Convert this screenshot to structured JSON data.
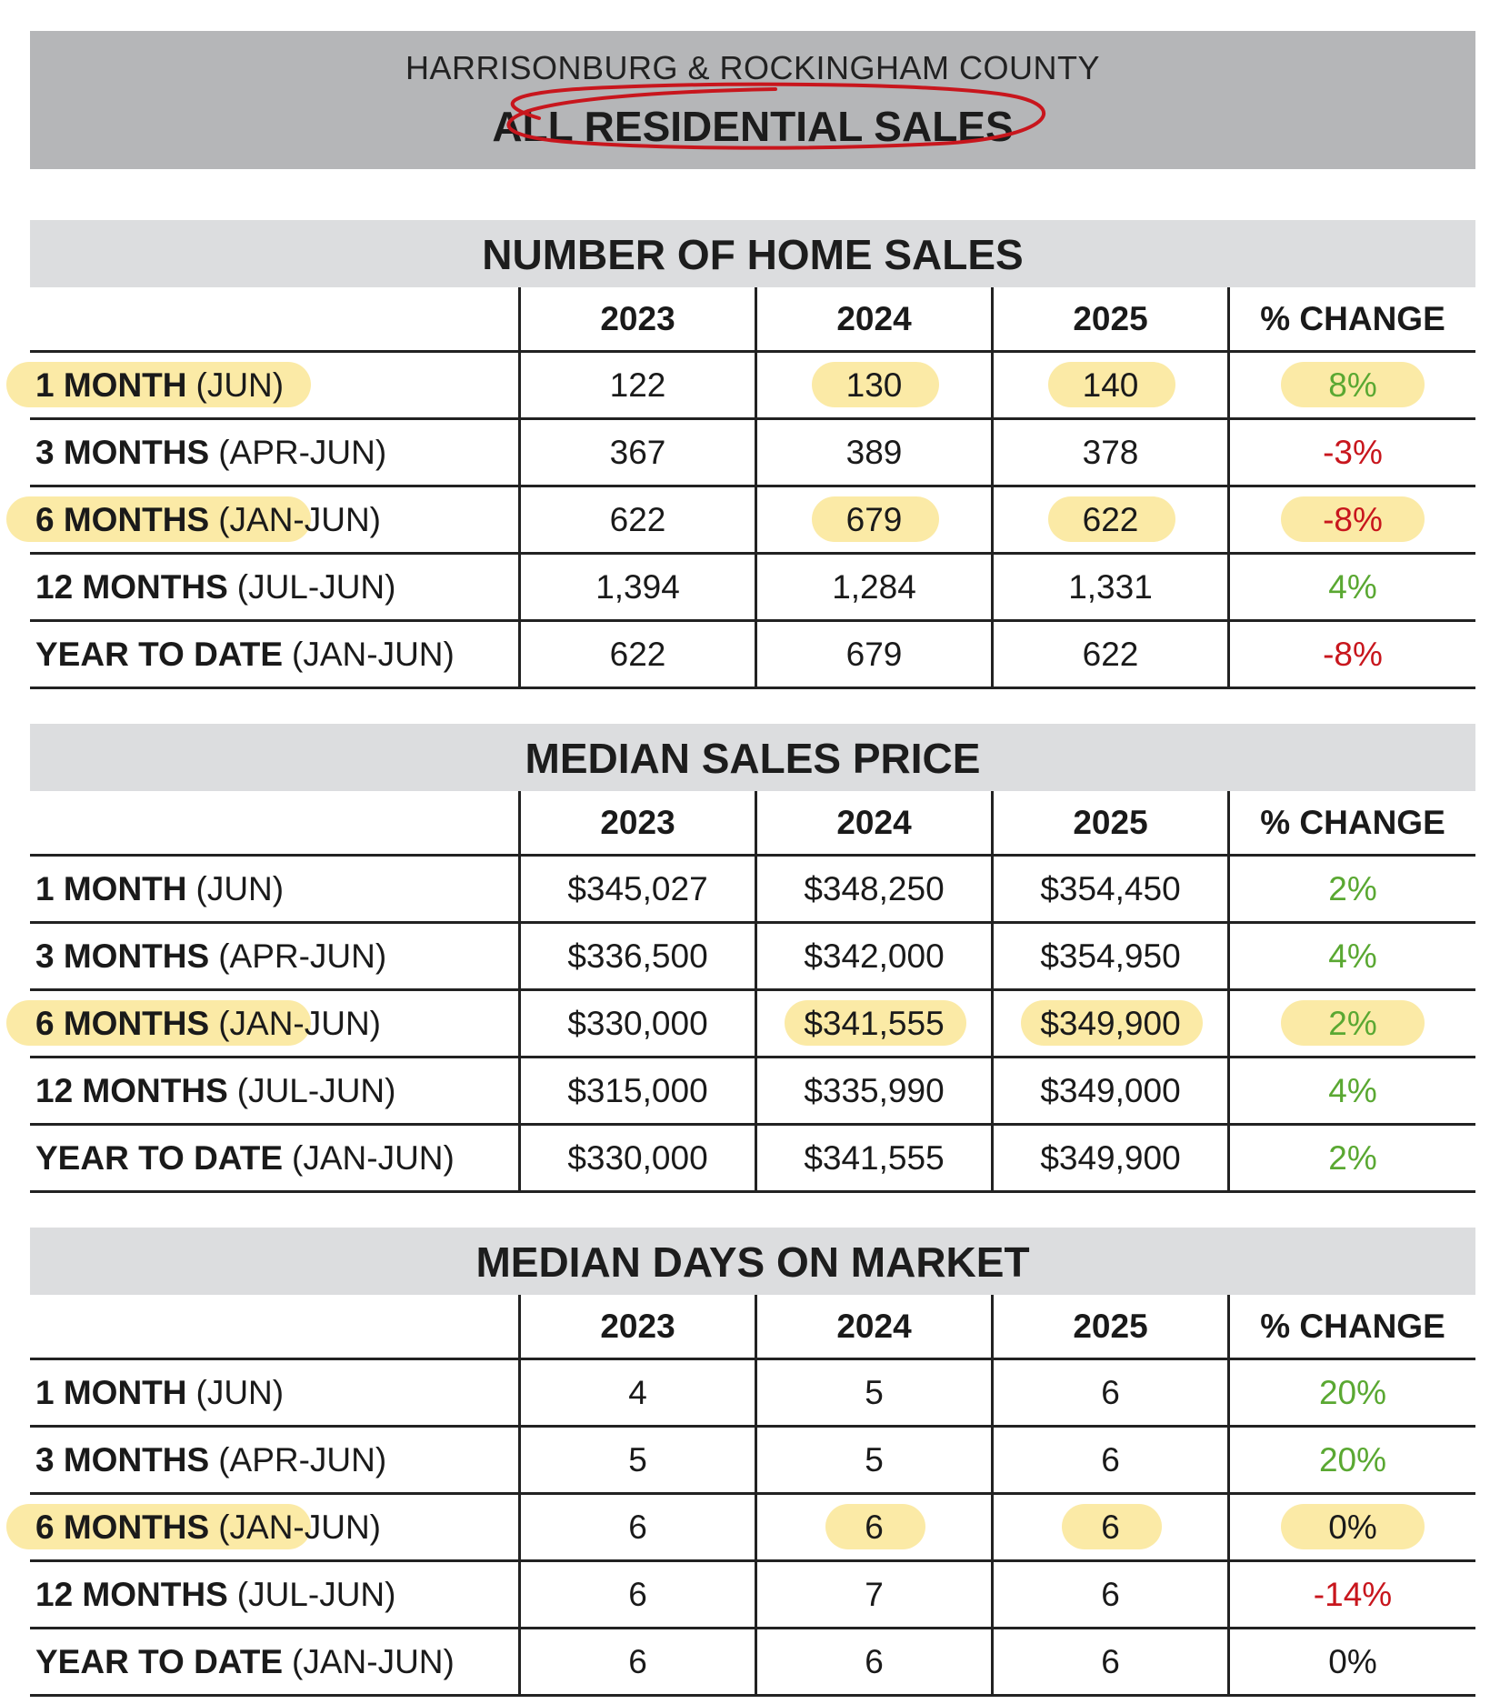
{
  "banner": {
    "subtitle": "HARRISONBURG & ROCKINGHAM COUNTY",
    "title": "ALL RESIDENTIAL SALES"
  },
  "colors": {
    "positive": "#5aa832",
    "negative": "#c8161d",
    "highlight": "#f9de76",
    "circle": "#c8161d"
  },
  "columns": [
    "2023",
    "2024",
    "2025",
    "% CHANGE"
  ],
  "tables": [
    {
      "title": "NUMBER OF HOME SALES",
      "rows": [
        {
          "label": "1 MONTH",
          "range": "(JUN)",
          "values": [
            "122",
            "130",
            "140"
          ],
          "change": "8%",
          "trend": "pos",
          "highlight": [
            true,
            false,
            true,
            true,
            true
          ]
        },
        {
          "label": "3 MONTHS",
          "range": "(APR-JUN)",
          "values": [
            "367",
            "389",
            "378"
          ],
          "change": "-3%",
          "trend": "neg",
          "highlight": [
            false,
            false,
            false,
            false,
            false
          ]
        },
        {
          "label": "6 MONTHS",
          "range": "(JAN-JUN)",
          "values": [
            "622",
            "679",
            "622"
          ],
          "change": "-8%",
          "trend": "neg",
          "highlight": [
            true,
            false,
            true,
            true,
            true
          ]
        },
        {
          "label": "12 MONTHS",
          "range": "(JUL-JUN)",
          "values": [
            "1,394",
            "1,284",
            "1,331"
          ],
          "change": "4%",
          "trend": "pos",
          "highlight": [
            false,
            false,
            false,
            false,
            false
          ]
        },
        {
          "label": "YEAR TO DATE",
          "range": "(JAN-JUN)",
          "values": [
            "622",
            "679",
            "622"
          ],
          "change": "-8%",
          "trend": "neg",
          "highlight": [
            false,
            false,
            false,
            false,
            false
          ]
        }
      ]
    },
    {
      "title": "MEDIAN SALES PRICE",
      "rows": [
        {
          "label": "1 MONTH",
          "range": "(JUN)",
          "values": [
            "$345,027",
            "$348,250",
            "$354,450"
          ],
          "change": "2%",
          "trend": "pos",
          "highlight": [
            false,
            false,
            false,
            false,
            false
          ]
        },
        {
          "label": "3 MONTHS",
          "range": "(APR-JUN)",
          "values": [
            "$336,500",
            "$342,000",
            "$354,950"
          ],
          "change": "4%",
          "trend": "pos",
          "highlight": [
            false,
            false,
            false,
            false,
            false
          ]
        },
        {
          "label": "6 MONTHS",
          "range": "(JAN-JUN)",
          "values": [
            "$330,000",
            "$341,555",
            "$349,900"
          ],
          "change": "2%",
          "trend": "pos",
          "highlight": [
            true,
            false,
            true,
            true,
            true
          ]
        },
        {
          "label": "12 MONTHS",
          "range": "(JUL-JUN)",
          "values": [
            "$315,000",
            "$335,990",
            "$349,000"
          ],
          "change": "4%",
          "trend": "pos",
          "highlight": [
            false,
            false,
            false,
            false,
            false
          ]
        },
        {
          "label": "YEAR TO DATE",
          "range": "(JAN-JUN)",
          "values": [
            "$330,000",
            "$341,555",
            "$349,900"
          ],
          "change": "2%",
          "trend": "pos",
          "highlight": [
            false,
            false,
            false,
            false,
            false
          ]
        }
      ]
    },
    {
      "title": "MEDIAN DAYS ON MARKET",
      "rows": [
        {
          "label": "1 MONTH",
          "range": "(JUN)",
          "values": [
            "4",
            "5",
            "6"
          ],
          "change": "20%",
          "trend": "pos",
          "highlight": [
            false,
            false,
            false,
            false,
            false
          ]
        },
        {
          "label": "3 MONTHS",
          "range": "(APR-JUN)",
          "values": [
            "5",
            "5",
            "6"
          ],
          "change": "20%",
          "trend": "pos",
          "highlight": [
            false,
            false,
            false,
            false,
            false
          ]
        },
        {
          "label": "6 MONTHS",
          "range": "(JAN-JUN)",
          "values": [
            "6",
            "6",
            "6"
          ],
          "change": "0%",
          "trend": "neu",
          "highlight": [
            true,
            false,
            true,
            true,
            true
          ]
        },
        {
          "label": "12 MONTHS",
          "range": "(JUL-JUN)",
          "values": [
            "6",
            "7",
            "6"
          ],
          "change": "-14%",
          "trend": "neg",
          "highlight": [
            false,
            false,
            false,
            false,
            false
          ]
        },
        {
          "label": "YEAR TO DATE",
          "range": "(JAN-JUN)",
          "values": [
            "6",
            "6",
            "6"
          ],
          "change": "0%",
          "trend": "neu",
          "highlight": [
            false,
            false,
            false,
            false,
            false
          ]
        }
      ]
    }
  ]
}
